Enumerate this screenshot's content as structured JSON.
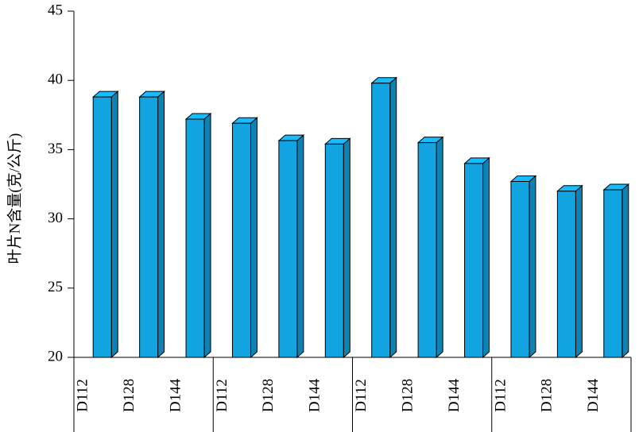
{
  "chart_data": {
    "type": "bar3d",
    "y_label": "叶片N含量(克/公斤)",
    "categories": [
      "D112",
      "D128",
      "D144",
      "D112",
      "D128",
      "D144",
      "D112",
      "D128",
      "D144",
      "D112",
      "D128",
      "D144"
    ],
    "values": [
      38.8,
      38.8,
      37.2,
      36.9,
      35.65,
      35.4,
      39.8,
      35.5,
      34.0,
      32.7,
      32.0,
      32.1
    ],
    "color": "#12a4e0",
    "ylim": [
      20,
      45
    ],
    "yticks": [
      20,
      25,
      30,
      35,
      40,
      45
    ],
    "grid": false
  }
}
